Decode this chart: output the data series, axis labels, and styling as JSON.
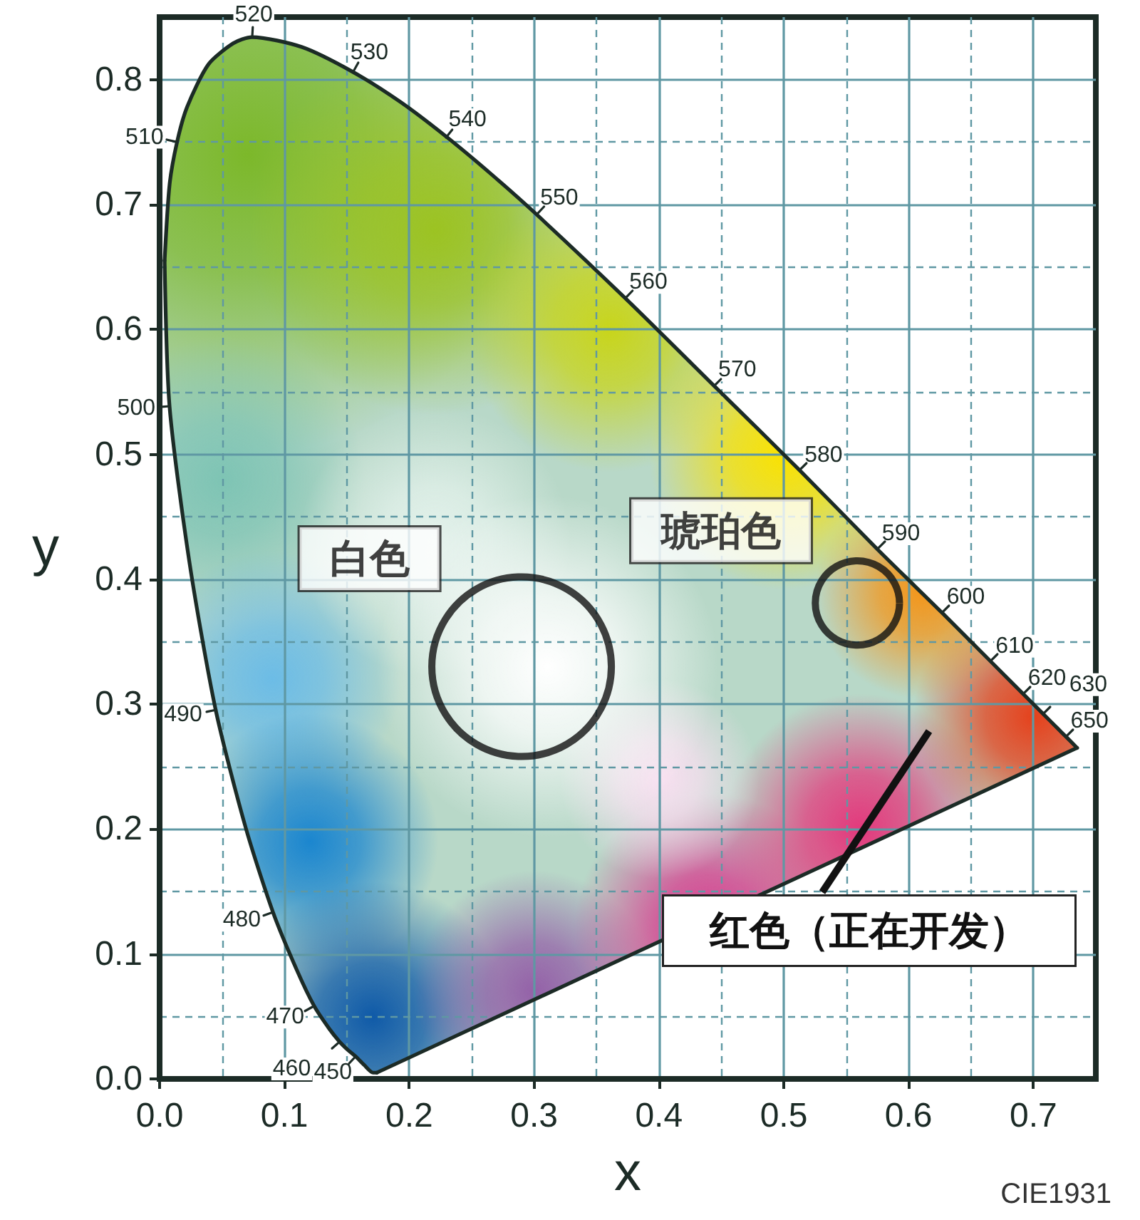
{
  "chart_data": {
    "type": "line",
    "xlabel": "x",
    "ylabel": "y",
    "xlim": [
      0,
      0.75
    ],
    "ylim": [
      0,
      0.85
    ],
    "xticks": [
      {
        "value": 0,
        "label": "0.0"
      },
      {
        "value": 0.05,
        "label": null
      },
      0.1,
      {
        "value": 0.15,
        "label": null
      },
      0.2,
      {
        "value": 0.25,
        "label": null
      },
      0.3,
      {
        "value": 0.35,
        "label": null
      },
      0.4,
      {
        "value": 0.45,
        "label": null
      },
      0.5,
      {
        "value": 0.55,
        "label": null
      },
      0.6,
      {
        "value": 0.65,
        "label": null
      },
      0.7
    ],
    "yticks": [
      {
        "value": 0,
        "label": "0.0"
      },
      {
        "value": 0.05,
        "label": null
      },
      0.1,
      {
        "value": 0.15,
        "label": null
      },
      0.2,
      {
        "value": 0.25,
        "label": null
      },
      0.3,
      {
        "value": 0.35,
        "label": null
      },
      0.4,
      {
        "value": 0.45,
        "label": null
      },
      0.5,
      {
        "value": 0.55,
        "label": null
      },
      0.6,
      {
        "value": 0.65,
        "label": null
      },
      0.7,
      {
        "value": 0.75,
        "label": null
      },
      0.8
    ],
    "grid": true,
    "series": [
      {
        "color": "#1c2b26",
        "x": [
          0.174,
          0.171,
          0.164,
          0.157,
          0.151,
          0.144,
          0.136,
          0.124,
          0.11,
          0.091,
          0.069,
          0.045,
          0.024,
          0.008,
          0.004
        ],
        "values": [
          0.005,
          0.005,
          0.011,
          0.018,
          0.023,
          0.03,
          0.04,
          0.058,
          0.087,
          0.133,
          0.201,
          0.295,
          0.413,
          0.538,
          0.655
        ]
      },
      {
        "color": "#1c2b26",
        "x": [
          0.004,
          0.008,
          0.014,
          0.022,
          0.039,
          0.059,
          0.074,
          0.114,
          0.155,
          0.193,
          0.23,
          0.266,
          0.302,
          0.373,
          0.444,
          0.513,
          0.575,
          0.627,
          0.666,
          0.692,
          0.708,
          0.719,
          0.726,
          0.735
        ],
        "values": [
          0.655,
          0.716,
          0.75,
          0.778,
          0.812,
          0.829,
          0.834,
          0.826,
          0.806,
          0.782,
          0.754,
          0.724,
          0.692,
          0.625,
          0.555,
          0.487,
          0.424,
          0.373,
          0.334,
          0.308,
          0.292,
          0.281,
          0.274,
          0.265
        ]
      },
      {
        "color": "#1c2b26",
        "x": [
          0.735,
          0.174
        ],
        "values": [
          0.265,
          0.005
        ]
      },
      {
        "type": "bubble",
        "name": "白色",
        "color": "#111111",
        "x": [
          0.29
        ],
        "values": [
          0.33
        ],
        "sizes": [
          1
        ]
      },
      {
        "type": "bubble",
        "name": "琥珀色",
        "color": "#111111",
        "x": [
          0.559
        ],
        "values": [
          0.381
        ],
        "sizes": [
          0.22
        ]
      }
    ],
    "annotations": [
      {
        "text": "450",
        "x": 0.157,
        "y": 0.018
      },
      {
        "text": "460",
        "x": 0.144,
        "y": 0.03
      },
      {
        "text": "470",
        "x": 0.124,
        "y": 0.058
      },
      {
        "text": "480",
        "x": 0.091,
        "y": 0.133
      },
      {
        "text": "490",
        "x": 0.045,
        "y": 0.295
      },
      {
        "text": "500",
        "x": 0.008,
        "y": 0.538
      },
      {
        "text": "510",
        "x": 0.014,
        "y": 0.75
      },
      {
        "text": "520",
        "x": 0.074,
        "y": 0.834
      },
      {
        "text": "530",
        "x": 0.155,
        "y": 0.806
      },
      {
        "text": "540",
        "x": 0.23,
        "y": 0.754
      },
      {
        "text": "550",
        "x": 0.302,
        "y": 0.692
      },
      {
        "text": "560",
        "x": 0.373,
        "y": 0.625
      },
      {
        "text": "570",
        "x": 0.444,
        "y": 0.555
      },
      {
        "text": "580",
        "x": 0.513,
        "y": 0.487
      },
      {
        "text": "590",
        "x": 0.575,
        "y": 0.424
      },
      {
        "text": "600",
        "x": 0.627,
        "y": 0.373
      },
      {
        "text": "610",
        "x": 0.666,
        "y": 0.334
      },
      {
        "text": "620",
        "x": 0.692,
        "y": 0.308
      },
      {
        "text": "630",
        "x": 0.708,
        "y": 0.292
      },
      {
        "text": "650",
        "x": 0.726,
        "y": 0.274
      },
      "红色（正在开发）",
      "CIE1931"
    ]
  }
}
